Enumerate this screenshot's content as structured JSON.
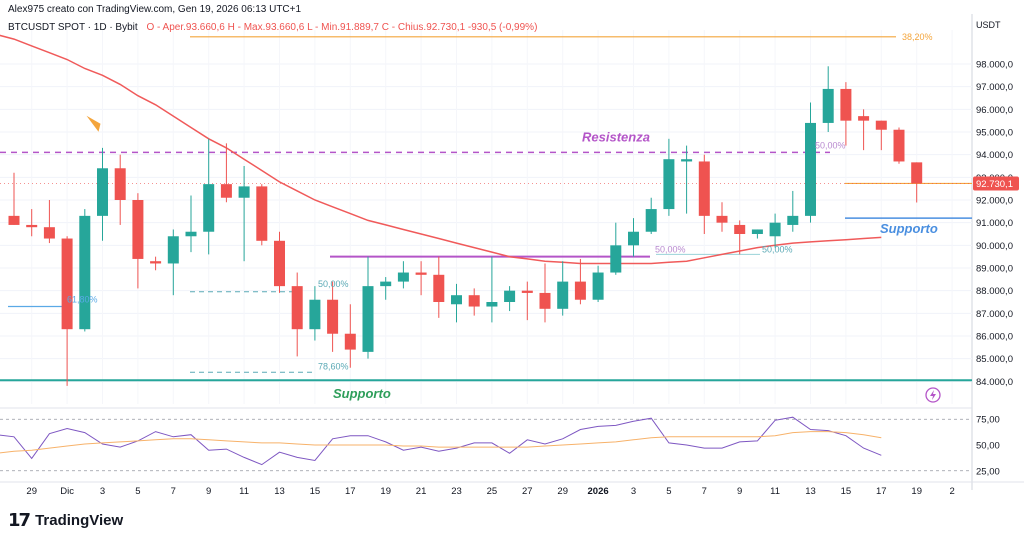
{
  "header": {
    "created_line": "Alex975 creato con TradingView.com, Gen 19, 2026 06:13 UTC+1",
    "symbol": "BTCUSDT SPOT · 1D · Bybit",
    "ohlc_line": "O - Aper.93.660,6  H - Max.93.660,6  L - Min.91.889,7  C - Chius.92.730,1  -930,5 (-0,99%)"
  },
  "colors": {
    "up": "#26a69a",
    "down": "#ef5350",
    "ma": "#f05a5a",
    "resistance": "#b455c8",
    "support_green": "#2e9e5a",
    "support_blue": "#4a8fe0",
    "fib_orange": "#f4a53c",
    "rsi": "#7e57c2"
  },
  "footer": {
    "brand": "TradingView"
  },
  "chart_data": [
    {
      "type": "candlestick",
      "title": "BTCUSDT SPOT 1D Bybit",
      "currency_label": "USDT",
      "ylim": [
        83000,
        99500
      ],
      "y_ticks": [
        84000,
        85000,
        86000,
        87000,
        88000,
        89000,
        90000,
        91000,
        92000,
        93000,
        94000,
        95000,
        96000,
        97000,
        98000
      ],
      "y_tick_labels": [
        "84.000,0",
        "85.000,0",
        "86.000,0",
        "87.000,0",
        "88.000,0",
        "89.000,0",
        "90.000,0",
        "91.000,0",
        "92.000,0",
        "93.000,0",
        "94.000,0",
        "95.000,0",
        "96.000,0",
        "97.000,0",
        "98.000,0"
      ],
      "x_tick_labels": [
        "29",
        "Dic",
        "3",
        "5",
        "7",
        "9",
        "11",
        "13",
        "15",
        "17",
        "19",
        "21",
        "23",
        "25",
        "27",
        "29",
        "2026",
        "3",
        "5",
        "7",
        "9",
        "11",
        "13",
        "15",
        "17",
        "19",
        "2"
      ],
      "last_price_label": "92.730,1",
      "candles": [
        {
          "o": 91300,
          "h": 93200,
          "l": 90900,
          "c": 90900
        },
        {
          "o": 90900,
          "h": 91600,
          "l": 90400,
          "c": 90800
        },
        {
          "o": 90800,
          "h": 92000,
          "l": 90100,
          "c": 90300
        },
        {
          "o": 90300,
          "h": 90400,
          "l": 83800,
          "c": 86300
        },
        {
          "o": 86300,
          "h": 91600,
          "l": 86200,
          "c": 91300
        },
        {
          "o": 91300,
          "h": 94300,
          "l": 90200,
          "c": 93400
        },
        {
          "o": 93400,
          "h": 94000,
          "l": 90900,
          "c": 92000
        },
        {
          "o": 92000,
          "h": 92300,
          "l": 88100,
          "c": 89400
        },
        {
          "o": 89300,
          "h": 89500,
          "l": 88900,
          "c": 89200
        },
        {
          "o": 89200,
          "h": 90700,
          "l": 87800,
          "c": 90400
        },
        {
          "o": 90400,
          "h": 92200,
          "l": 89700,
          "c": 90600
        },
        {
          "o": 90600,
          "h": 94700,
          "l": 89600,
          "c": 92700
        },
        {
          "o": 92700,
          "h": 94500,
          "l": 91900,
          "c": 92100
        },
        {
          "o": 92100,
          "h": 93500,
          "l": 89300,
          "c": 92600
        },
        {
          "o": 92600,
          "h": 92700,
          "l": 90000,
          "c": 90200
        },
        {
          "o": 90200,
          "h": 90600,
          "l": 87900,
          "c": 88200
        },
        {
          "o": 88200,
          "h": 88800,
          "l": 85100,
          "c": 86300
        },
        {
          "o": 86300,
          "h": 88200,
          "l": 85800,
          "c": 87600
        },
        {
          "o": 87600,
          "h": 88400,
          "l": 85300,
          "c": 86100
        },
        {
          "o": 86100,
          "h": 87400,
          "l": 84600,
          "c": 85400
        },
        {
          "o": 85300,
          "h": 89500,
          "l": 85000,
          "c": 88200
        },
        {
          "o": 88200,
          "h": 88600,
          "l": 87600,
          "c": 88400
        },
        {
          "o": 88400,
          "h": 89300,
          "l": 88100,
          "c": 88800
        },
        {
          "o": 88800,
          "h": 89300,
          "l": 87800,
          "c": 88700
        },
        {
          "o": 88700,
          "h": 89500,
          "l": 86800,
          "c": 87500
        },
        {
          "o": 87400,
          "h": 88300,
          "l": 86600,
          "c": 87800
        },
        {
          "o": 87800,
          "h": 88100,
          "l": 86900,
          "c": 87300
        },
        {
          "o": 87300,
          "h": 89500,
          "l": 86600,
          "c": 87500
        },
        {
          "o": 87500,
          "h": 88200,
          "l": 87100,
          "c": 88000
        },
        {
          "o": 88000,
          "h": 88400,
          "l": 86700,
          "c": 87900
        },
        {
          "o": 87900,
          "h": 89200,
          "l": 86600,
          "c": 87200
        },
        {
          "o": 87200,
          "h": 89300,
          "l": 86900,
          "c": 88400
        },
        {
          "o": 88400,
          "h": 89400,
          "l": 87400,
          "c": 87600
        },
        {
          "o": 87600,
          "h": 89100,
          "l": 87500,
          "c": 88800
        },
        {
          "o": 88800,
          "h": 91000,
          "l": 88700,
          "c": 90000
        },
        {
          "o": 90000,
          "h": 91200,
          "l": 89500,
          "c": 90600
        },
        {
          "o": 90600,
          "h": 92100,
          "l": 90500,
          "c": 91600
        },
        {
          "o": 91600,
          "h": 94700,
          "l": 91300,
          "c": 93800
        },
        {
          "o": 93700,
          "h": 94400,
          "l": 91400,
          "c": 93800
        },
        {
          "o": 93700,
          "h": 94000,
          "l": 90500,
          "c": 91300
        },
        {
          "o": 91300,
          "h": 91900,
          "l": 90600,
          "c": 91000
        },
        {
          "o": 90900,
          "h": 91100,
          "l": 89600,
          "c": 90500
        },
        {
          "o": 90500,
          "h": 90700,
          "l": 90300,
          "c": 90700
        },
        {
          "o": 90400,
          "h": 91400,
          "l": 89900,
          "c": 91000
        },
        {
          "o": 90900,
          "h": 92400,
          "l": 90600,
          "c": 91300
        },
        {
          "o": 91300,
          "h": 96300,
          "l": 91000,
          "c": 95400
        },
        {
          "o": 95400,
          "h": 97900,
          "l": 95000,
          "c": 96900
        },
        {
          "o": 96900,
          "h": 97200,
          "l": 94400,
          "c": 95500
        },
        {
          "o": 95700,
          "h": 96000,
          "l": 94200,
          "c": 95500
        },
        {
          "o": 95500,
          "h": 95500,
          "l": 94200,
          "c": 95100
        },
        {
          "o": 95100,
          "h": 95200,
          "l": 93600,
          "c": 93700
        },
        {
          "o": 93660.6,
          "h": 93660.6,
          "l": 91889.7,
          "c": 92730.1
        }
      ],
      "moving_average": [
        99500,
        99300,
        99100,
        98800,
        98500,
        98200,
        97800,
        97500,
        97100,
        96600,
        96200,
        95700,
        95200,
        94700,
        94300,
        93800,
        93300,
        92800,
        92400,
        92000,
        91700,
        91400,
        91100,
        90900,
        90700,
        90500,
        90300,
        90100,
        89900,
        89700,
        89500,
        89400,
        89300,
        89250,
        89200,
        89200,
        89200,
        89200,
        89200,
        89250,
        89300,
        89450,
        89600,
        89750,
        89900,
        90000,
        90100,
        90150,
        90200,
        90250,
        90300,
        90350
      ],
      "annotations": [
        {
          "label": "Resistenza",
          "price": 94100
        },
        {
          "label": "Supporto",
          "price": 84050
        },
        {
          "label": "Supporto",
          "price": 91200
        },
        {
          "label": "38,20%",
          "price": 99200
        },
        {
          "label": "50,00%",
          "price": 94400
        },
        {
          "label": "50,00%",
          "price": 89600
        },
        {
          "label": "50,00%",
          "price": 89600
        },
        {
          "label": "50,00%",
          "price": 87950
        },
        {
          "label": "61,80%",
          "price": 87300
        },
        {
          "label": "78,60%",
          "price": 84400
        }
      ]
    },
    {
      "type": "line",
      "title": "RSI",
      "ylim": [
        18,
        82
      ],
      "y_ticks": [
        25,
        50,
        75
      ],
      "y_tick_labels": [
        "25,00",
        "50,00",
        "75,00"
      ],
      "overbought": 75,
      "oversold": 25,
      "series": [
        {
          "values": [
            61,
            60,
            58,
            37,
            61,
            66,
            62,
            51,
            48,
            54,
            63,
            58,
            60,
            45,
            46,
            38,
            31,
            43,
            38,
            35,
            56,
            59,
            59,
            53,
            45,
            48,
            44,
            47,
            52,
            52,
            42,
            55,
            51,
            56,
            65,
            68,
            69,
            73,
            76,
            52,
            50,
            47,
            47,
            53,
            54,
            74,
            77,
            65,
            64,
            59,
            47,
            40
          ]
        },
        {
          "values": [
            40,
            42,
            44,
            45,
            47,
            49,
            51,
            52,
            53,
            54,
            55,
            56,
            56,
            55,
            54,
            53,
            52,
            52,
            51,
            50,
            50,
            50,
            50,
            50,
            49,
            49,
            48,
            48,
            48,
            48,
            48,
            48,
            49,
            50,
            51,
            52,
            53,
            55,
            57,
            58,
            58,
            58,
            58,
            58,
            58,
            59,
            62,
            63,
            63,
            62,
            60,
            57
          ]
        }
      ]
    }
  ]
}
